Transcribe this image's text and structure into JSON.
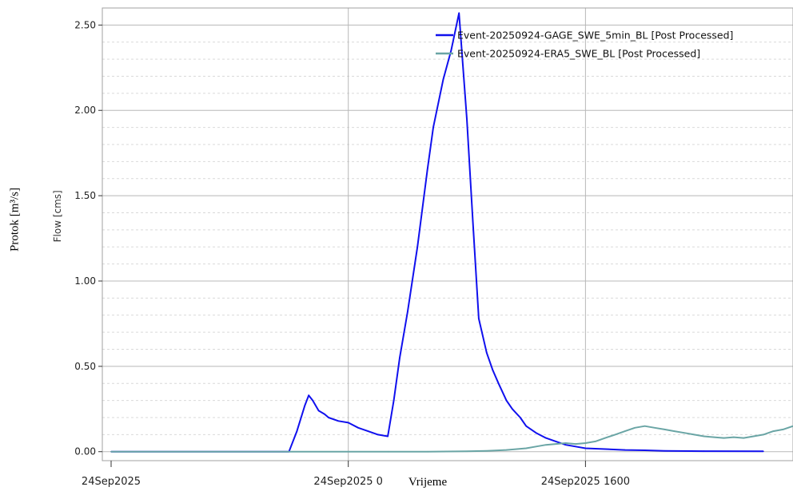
{
  "outer_labels": {
    "y_label": "Protok [m³/s]",
    "x_label": "Vrijeme"
  },
  "chart_data": {
    "type": "line",
    "ylabel": "Flow [cms]",
    "xlabel": "",
    "ylim": [
      -0.02,
      2.6
    ],
    "xlim": [
      0,
      34.5
    ],
    "grid": true,
    "legend_position": "top-right",
    "x_unit": "hours from 24Sep2025 0000",
    "y_ticks": [
      {
        "value": 0.0,
        "label": "0.00"
      },
      {
        "value": 0.5,
        "label": "0.50"
      },
      {
        "value": 1.0,
        "label": "1.00"
      },
      {
        "value": 1.5,
        "label": "1.50"
      },
      {
        "value": 2.0,
        "label": "2.00"
      },
      {
        "value": 2.5,
        "label": "2.50"
      }
    ],
    "x_ticks": [
      {
        "value": 0,
        "label": "24Sep2025"
      },
      {
        "value": 12,
        "label": "24Sep2025 0"
      },
      {
        "value": 24,
        "label": "24Sep2025 1600"
      }
    ],
    "series": [
      {
        "name": "Event-20250924-GAGE_SWE_5min_BL [Post Processed]",
        "color": "#1010ee",
        "x": [
          0,
          9.0,
          9.4,
          9.8,
          10.0,
          10.2,
          10.5,
          10.8,
          11.0,
          11.5,
          12.0,
          12.5,
          13.0,
          13.5,
          14.0,
          14.3,
          14.6,
          15.0,
          15.5,
          16.0,
          16.3,
          16.8,
          17.2,
          17.6,
          18.0,
          18.3,
          18.6,
          19.0,
          19.3,
          19.6,
          20.0,
          20.3,
          20.7,
          21.0,
          21.5,
          22.0,
          22.5,
          23.0,
          23.5,
          24.0,
          25.0,
          26.0,
          27.0,
          28.0,
          30.0,
          33.0
        ],
        "values": [
          0.0,
          0.0,
          0.12,
          0.27,
          0.33,
          0.3,
          0.24,
          0.22,
          0.2,
          0.18,
          0.17,
          0.14,
          0.12,
          0.1,
          0.09,
          0.3,
          0.55,
          0.82,
          1.2,
          1.65,
          1.9,
          2.18,
          2.35,
          2.57,
          1.95,
          1.35,
          0.78,
          0.58,
          0.48,
          0.4,
          0.3,
          0.25,
          0.2,
          0.15,
          0.11,
          0.08,
          0.06,
          0.04,
          0.03,
          0.02,
          0.015,
          0.01,
          0.008,
          0.005,
          0.003,
          0.002
        ]
      },
      {
        "name": "Event-20250924-ERA5_SWE_BL [Post Processed]",
        "color": "#6aa5a5",
        "x": [
          0,
          14.0,
          16.0,
          18.0,
          19.0,
          20.0,
          21.0,
          21.5,
          22.0,
          22.5,
          23.0,
          23.5,
          24.0,
          24.5,
          25.0,
          25.5,
          26.0,
          26.5,
          27.0,
          27.5,
          28.0,
          28.5,
          29.0,
          29.5,
          30.0,
          30.5,
          31.0,
          31.5,
          32.0,
          32.5,
          33.0,
          33.5,
          34.0,
          34.5
        ],
        "values": [
          0.0,
          0.0,
          0.0,
          0.002,
          0.005,
          0.01,
          0.02,
          0.03,
          0.04,
          0.045,
          0.05,
          0.045,
          0.05,
          0.06,
          0.08,
          0.1,
          0.12,
          0.14,
          0.15,
          0.14,
          0.13,
          0.12,
          0.11,
          0.1,
          0.09,
          0.085,
          0.08,
          0.085,
          0.08,
          0.09,
          0.1,
          0.12,
          0.13,
          0.15
        ]
      }
    ]
  }
}
